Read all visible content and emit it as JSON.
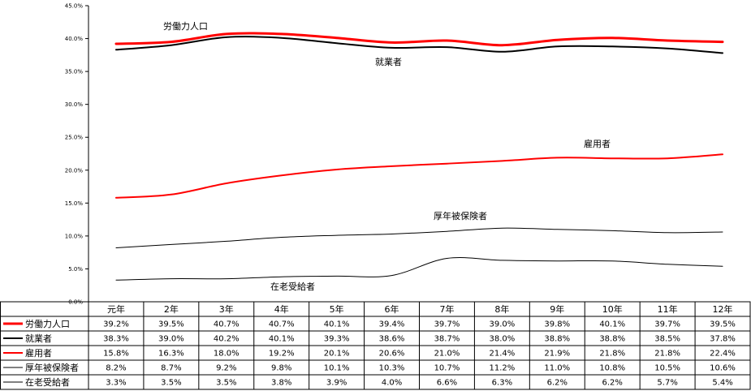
{
  "chart_data": {
    "type": "line",
    "categories": [
      "元年",
      "2年",
      "3年",
      "4年",
      "5年",
      "6年",
      "7年",
      "8年",
      "9年",
      "10年",
      "11年",
      "12年"
    ],
    "ylim": [
      0,
      45
    ],
    "ytick_step": 5,
    "ytick_labels": [
      "0.0%",
      "5.0%",
      "10.0%",
      "15.0%",
      "20.0%",
      "25.0%",
      "30.0%",
      "35.0%",
      "40.0%",
      "45.0%"
    ],
    "grid": false,
    "series": [
      {
        "name": "労働力人口",
        "color": "#ff0000",
        "style": "thick",
        "values": [
          39.2,
          39.5,
          40.7,
          40.7,
          40.1,
          39.4,
          39.7,
          39.0,
          39.8,
          40.1,
          39.7,
          39.5
        ],
        "labels": [
          "39.2%",
          "39.5%",
          "40.7%",
          "40.7%",
          "40.1%",
          "39.4%",
          "39.7%",
          "39.0%",
          "39.8%",
          "40.1%",
          "39.7%",
          "39.5%"
        ]
      },
      {
        "name": "就業者",
        "color": "#000000",
        "style": "medium",
        "values": [
          38.3,
          39.0,
          40.2,
          40.1,
          39.3,
          38.6,
          38.7,
          38.0,
          38.8,
          38.8,
          38.5,
          37.8
        ],
        "labels": [
          "38.3%",
          "39.0%",
          "40.2%",
          "40.1%",
          "39.3%",
          "38.6%",
          "38.7%",
          "38.0%",
          "38.8%",
          "38.8%",
          "38.5%",
          "37.8%"
        ]
      },
      {
        "name": "雇用者",
        "color": "#ff0000",
        "style": "medium",
        "values": [
          15.8,
          16.3,
          18.0,
          19.2,
          20.1,
          20.6,
          21.0,
          21.4,
          21.9,
          21.8,
          21.8,
          22.4
        ],
        "labels": [
          "15.8%",
          "16.3%",
          "18.0%",
          "19.2%",
          "20.1%",
          "20.6%",
          "21.0%",
          "21.4%",
          "21.9%",
          "21.8%",
          "21.8%",
          "22.4%"
        ]
      },
      {
        "name": "厚年被保険者",
        "color": "#000000",
        "style": "thin",
        "values": [
          8.2,
          8.7,
          9.2,
          9.8,
          10.1,
          10.3,
          10.7,
          11.2,
          11.0,
          10.8,
          10.5,
          10.6
        ],
        "labels": [
          "8.2%",
          "8.7%",
          "9.2%",
          "9.8%",
          "10.1%",
          "10.3%",
          "10.7%",
          "11.2%",
          "11.0%",
          "10.8%",
          "10.5%",
          "10.6%"
        ]
      },
      {
        "name": "在老受給者",
        "color": "#000000",
        "style": "thin",
        "values": [
          3.3,
          3.5,
          3.5,
          3.8,
          3.9,
          4.0,
          6.6,
          6.3,
          6.2,
          6.2,
          5.7,
          5.4
        ],
        "labels": [
          "3.3%",
          "3.5%",
          "3.5%",
          "3.8%",
          "3.9%",
          "4.0%",
          "6.6%",
          "6.3%",
          "6.2%",
          "6.2%",
          "5.7%",
          "5.4%"
        ]
      }
    ]
  }
}
